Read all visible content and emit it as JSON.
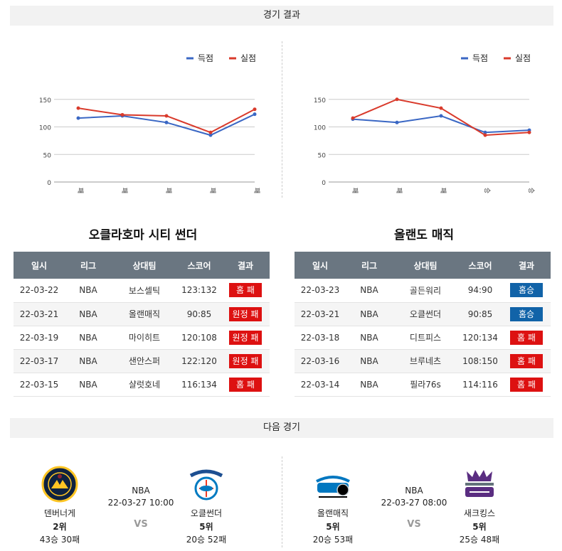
{
  "header": {
    "results_title": "경기 결과",
    "next_title": "다음 경기"
  },
  "legend": {
    "scored": "득점",
    "conceded": "실점"
  },
  "colors": {
    "scored": "#3a67c4",
    "conceded": "#d93a2b",
    "win": "#1163a8",
    "loss": "#dd1111",
    "table_header": "#6a7681"
  },
  "chart_data": [
    {
      "type": "line",
      "categories": [
        "패",
        "패",
        "패",
        "패",
        "패"
      ],
      "series": [
        {
          "name": "득점",
          "values": [
            116,
            120,
            108,
            85,
            123
          ]
        },
        {
          "name": "실점",
          "values": [
            134,
            122,
            120,
            90,
            132
          ]
        }
      ],
      "yticks": [
        0,
        50,
        100,
        150
      ],
      "ylim": [
        0,
        160
      ],
      "legend": "top-right",
      "grid": true
    },
    {
      "type": "line",
      "categories": [
        "패",
        "패",
        "패",
        "승",
        "승"
      ],
      "series": [
        {
          "name": "득점",
          "values": [
            114,
            108,
            120,
            90,
            94
          ]
        },
        {
          "name": "실점",
          "values": [
            116,
            150,
            134,
            85,
            90
          ]
        }
      ],
      "yticks": [
        0,
        50,
        100,
        150
      ],
      "ylim": [
        0,
        160
      ],
      "legend": "top-right",
      "grid": true
    }
  ],
  "columns": [
    "일시",
    "리그",
    "상대팀",
    "스코어",
    "결과"
  ],
  "teams": [
    {
      "name": "오클라호마 시티 썬더",
      "games": [
        {
          "date": "22-03-22",
          "league": "NBA",
          "opponent": "보스셀틱",
          "score": "123:132",
          "result": "홈 패",
          "win": false
        },
        {
          "date": "22-03-21",
          "league": "NBA",
          "opponent": "올랜매직",
          "score": "90:85",
          "result": "원정 패",
          "win": false
        },
        {
          "date": "22-03-19",
          "league": "NBA",
          "opponent": "마이히트",
          "score": "120:108",
          "result": "원정 패",
          "win": false
        },
        {
          "date": "22-03-17",
          "league": "NBA",
          "opponent": "샌안스퍼",
          "score": "122:120",
          "result": "원정 패",
          "win": false
        },
        {
          "date": "22-03-15",
          "league": "NBA",
          "opponent": "샬럿호네",
          "score": "116:134",
          "result": "홈 패",
          "win": false
        }
      ]
    },
    {
      "name": "올랜도 매직",
      "games": [
        {
          "date": "22-03-23",
          "league": "NBA",
          "opponent": "골든워리",
          "score": "94:90",
          "result": "홈승",
          "win": true
        },
        {
          "date": "22-03-21",
          "league": "NBA",
          "opponent": "오클썬더",
          "score": "90:85",
          "result": "홈승",
          "win": true
        },
        {
          "date": "22-03-18",
          "league": "NBA",
          "opponent": "디트피스",
          "score": "120:134",
          "result": "홈 패",
          "win": false
        },
        {
          "date": "22-03-16",
          "league": "NBA",
          "opponent": "브루네츠",
          "score": "108:150",
          "result": "홈 패",
          "win": false
        },
        {
          "date": "22-03-14",
          "league": "NBA",
          "opponent": "필라76s",
          "score": "114:116",
          "result": "홈 패",
          "win": false
        }
      ]
    }
  ],
  "next_games": [
    {
      "league": "NBA",
      "datetime": "22-03-27 10:00",
      "vs": "VS",
      "home": {
        "name": "덴버너게",
        "rank": "2위",
        "record": "43승 30패",
        "logo": "denver-nuggets-logo"
      },
      "away": {
        "name": "오클썬더",
        "rank": "5위",
        "record": "20승 52패",
        "logo": "okc-thunder-logo"
      }
    },
    {
      "league": "NBA",
      "datetime": "22-03-27 08:00",
      "vs": "VS",
      "home": {
        "name": "올랜매직",
        "rank": "5위",
        "record": "20승 53패",
        "logo": "orlando-magic-logo"
      },
      "away": {
        "name": "새크킹스",
        "rank": "5위",
        "record": "25승 48패",
        "logo": "sacramento-kings-logo"
      }
    }
  ]
}
